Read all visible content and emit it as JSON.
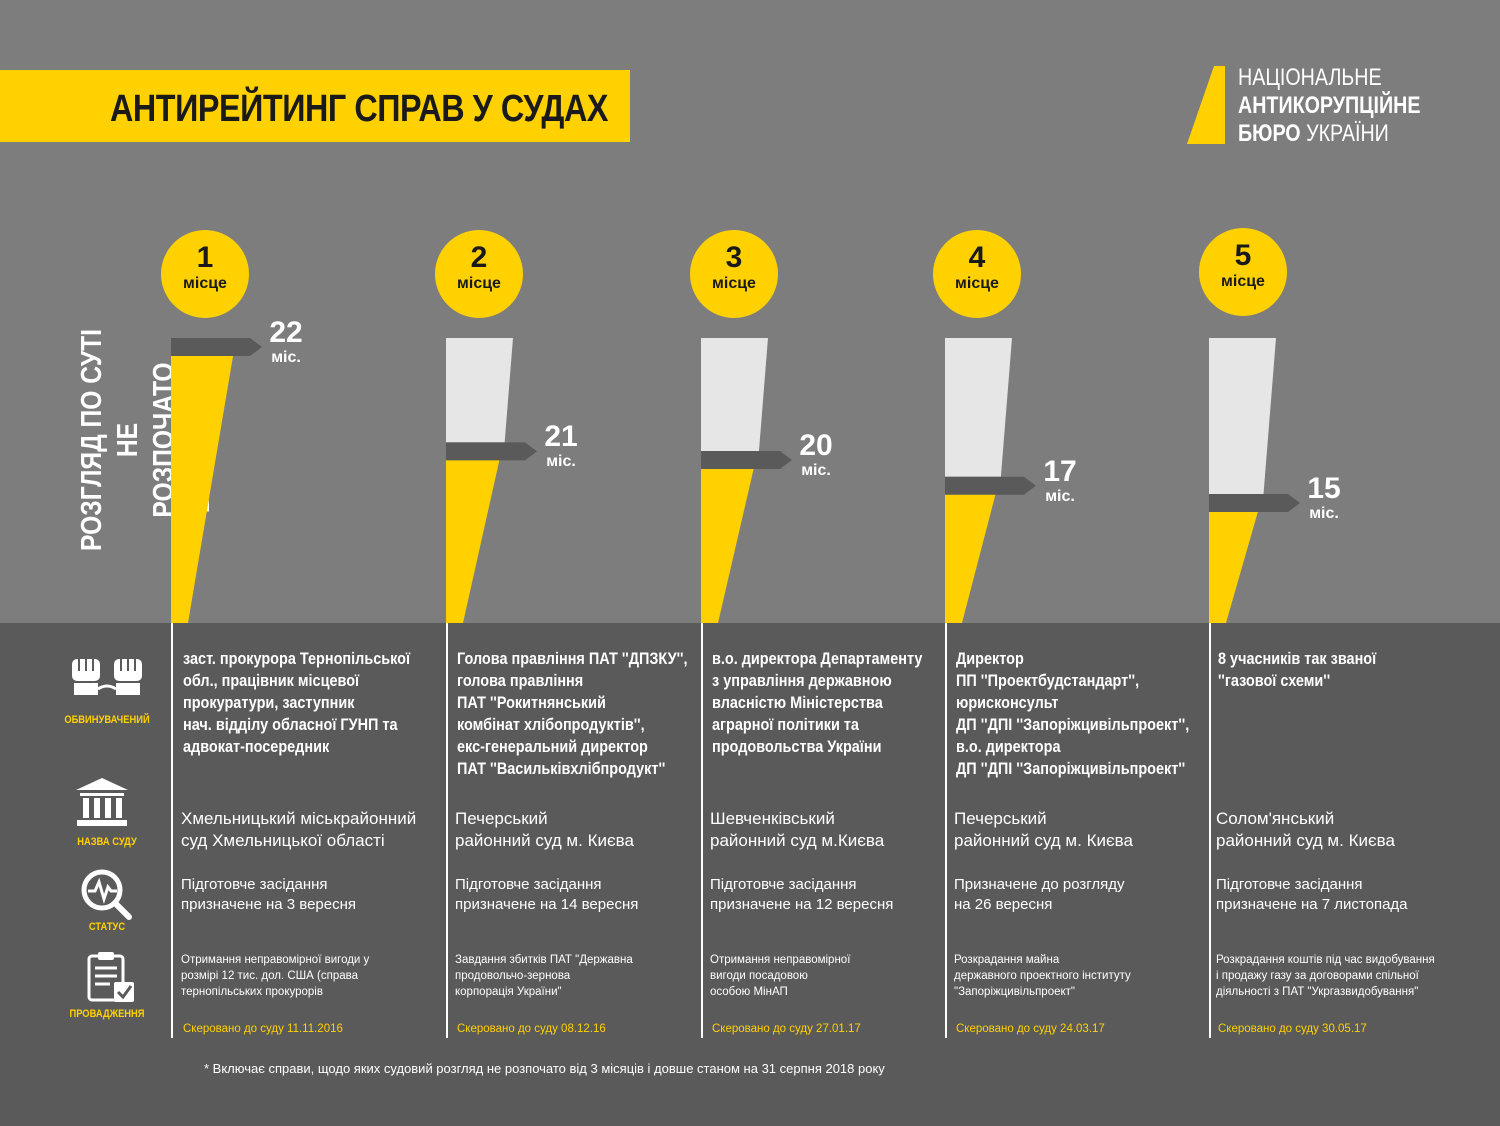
{
  "header": {
    "title": "АНТИРЕЙТИНГ СПРАВ У СУДАХ",
    "logo_lines": [
      {
        "bold": "",
        "normal": "НАЦІОНАЛЬНЕ"
      },
      {
        "bold": "АНТИКОРУПЦІЙНЕ",
        "normal": ""
      },
      {
        "bold": "БЮРО",
        "normal": " УКРАЇНИ"
      }
    ]
  },
  "axis_label_lines": [
    "РОЗГЛЯД ПО СУТІ НЕ",
    "РОЗПОЧАТО ВПРОДОВЖ"
  ],
  "icon_labels": {
    "accused": "ОБВИНУВАЧЕНИЙ",
    "court": "НАЗВА СУДУ",
    "status": "СТАТУС",
    "proceedings": "ПРОВАДЖЕННЯ"
  },
  "colors": {
    "accent": "#ffd100",
    "bar_empty": "#e6e6e6",
    "marker": "#5a5a5a"
  },
  "chart_data": {
    "type": "bar",
    "categories": [
      "1",
      "2",
      "3",
      "4",
      "5"
    ],
    "rank_suffix": "місце",
    "values": [
      22,
      21,
      20,
      17,
      15
    ],
    "value_labels": [
      "22",
      "21",
      "20",
      "17",
      "15"
    ],
    "unit": "міс.",
    "ylim": [
      0,
      22
    ]
  },
  "cases": [
    {
      "accused": [
        "заст. прокурора Тернопільської",
        "обл., працівник місцевої",
        "прокуратури, заступник",
        "нач. відділу обласної ГУНП та",
        "адвокат-посередник"
      ],
      "court": [
        "Хмельницький міськрайонний",
        "суд Хмельницької області"
      ],
      "status": [
        "Підготовче засідання",
        "призначене на 3 вересня"
      ],
      "proceedings": [
        "Отримання неправомірної вигоди у",
        "розмірі 12 тис. дол. США (справа",
        "тернопільських прокурорів"
      ],
      "sent": "Скеровано до суду  11.11.2016"
    },
    {
      "accused": [
        "Голова правління ПАТ ''ДПЗКУ'',",
        "голова правління",
        "ПАТ ''Рокитнянський",
        "комбінат хлібопродуктів'',",
        "екс-генеральний директор",
        "ПАТ ''Васильківхлібпродукт''"
      ],
      "court": [
        "Печерський",
        "районний суд м. Києва"
      ],
      "status": [
        "Підготовче засідання",
        "призначене на 14 вересня"
      ],
      "proceedings": [
        "Завдання збитків ПАТ \"Державна",
        "продовольчо-зернова",
        "корпорація України\""
      ],
      "sent": "Скеровано до суду   08.12.16"
    },
    {
      "accused": [
        "в.о. директора Департаменту",
        "з управління державною",
        "власністю Міністерства",
        "аграрної політики та",
        "продовольства України"
      ],
      "court": [
        "Шевченківський",
        "районний суд м.Києва"
      ],
      "status": [
        "Підготовче засідання",
        "призначене на 12 вересня"
      ],
      "proceedings": [
        "Отримання неправомірної",
        "вигоди посадовою",
        "особою МінАП"
      ],
      "sent": "Скеровано до суду  27.01.17"
    },
    {
      "accused": [
        "Директор",
        "ПП ''Проектбудстандарт'',",
        "юрисконсульт",
        "ДП ''ДПІ ''Запоріжцивільпроект'',",
        "в.о. директора",
        "ДП ''ДПІ ''Запоріжцивільпроект''"
      ],
      "court": [
        "Печерський",
        "районний суд м. Києва"
      ],
      "status": [
        "Призначене до розгляду",
        "на 26 вересня"
      ],
      "proceedings": [
        "Розкрадання майна",
        "державного проектного інституту",
        "\"Запоріжцивільпроект\""
      ],
      "sent": "Скеровано до суду 24.03.17"
    },
    {
      "accused": [
        " 8 учасників так званої",
        "''газової схеми''"
      ],
      "court": [
        "Солом'янський",
        "районний суд м. Києва"
      ],
      "status": [
        "Підготовче засідання",
        "призначене на 7 листопада"
      ],
      "proceedings": [
        "Розкрадання коштів під час видобування",
        "і продажу газу за договорами спільної",
        "діяльності з ПАТ \"Укргазвидобування\""
      ],
      "sent": "Скеровано до суду  30.05.17"
    }
  ],
  "footnote": "*   Включає справи, щодо яких судовий розгляд не розпочато від 3 місяців і довше станом на 31 серпня 2018 року"
}
